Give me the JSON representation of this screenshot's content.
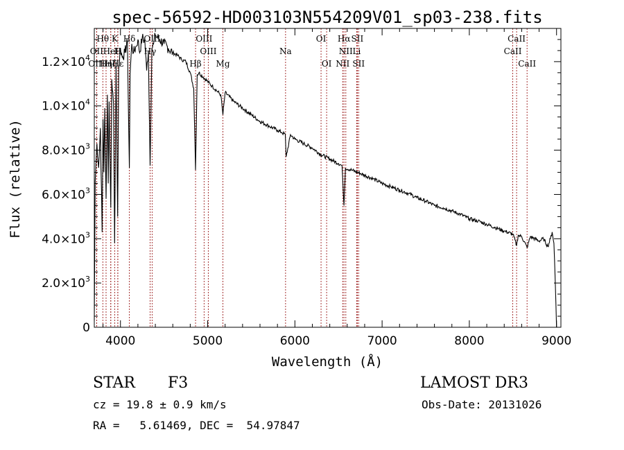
{
  "header": {
    "title": "spec-56592-HD003103N554209V01_sp03-238.fits"
  },
  "chart_data": {
    "type": "line",
    "title": "spec-56592-HD003103N554209V01_sp03-238.fits",
    "xlabel": "Wavelength (Å)",
    "ylabel": "Flux (relative)",
    "xlim": [
      3700,
      9050
    ],
    "ylim": [
      0,
      13500
    ],
    "x_ticks": [
      4000,
      5000,
      6000,
      7000,
      8000,
      9000
    ],
    "y_ticks": [
      {
        "value": 0,
        "mantissa": "0",
        "exp": ""
      },
      {
        "value": 2000,
        "mantissa": "2.0×10",
        "exp": "3"
      },
      {
        "value": 4000,
        "mantissa": "4.0×10",
        "exp": "3"
      },
      {
        "value": 6000,
        "mantissa": "6.0×10",
        "exp": "3"
      },
      {
        "value": 8000,
        "mantissa": "8.0×10",
        "exp": "3"
      },
      {
        "value": 10000,
        "mantissa": "1.0×10",
        "exp": "4"
      },
      {
        "value": 12000,
        "mantissa": "1.2×10",
        "exp": "4"
      }
    ],
    "series": [
      {
        "name": "flux",
        "x": [
          3700,
          3710,
          3730,
          3750,
          3770,
          3790,
          3800,
          3810,
          3820,
          3835,
          3850,
          3860,
          3870,
          3880,
          3889,
          3900,
          3920,
          3933,
          3950,
          3960,
          3968,
          3980,
          4000,
          4020,
          4050,
          4080,
          4102,
          4110,
          4130,
          4150,
          4180,
          4200,
          4220,
          4250,
          4280,
          4300,
          4320,
          4340,
          4360,
          4380,
          4400,
          4450,
          4500,
          4550,
          4600,
          4650,
          4700,
          4750,
          4800,
          4840,
          4861,
          4880,
          4900,
          4950,
          5000,
          5050,
          5100,
          5150,
          5175,
          5200,
          5300,
          5400,
          5500,
          5600,
          5700,
          5800,
          5850,
          5890,
          5900,
          5950,
          6000,
          6100,
          6200,
          6300,
          6400,
          6500,
          6540,
          6563,
          6580,
          6650,
          6750,
          6900,
          7000,
          7100,
          7200,
          7300,
          7400,
          7500,
          7600,
          7700,
          7800,
          7900,
          8000,
          8100,
          8200,
          8300,
          8400,
          8500,
          8542,
          8560,
          8600,
          8662,
          8700,
          8800,
          8850,
          8900,
          8930,
          8950,
          8970,
          8985,
          9000
        ],
        "values": [
          300,
          6600,
          8300,
          7200,
          9000,
          4300,
          9400,
          7000,
          9900,
          5800,
          10500,
          6500,
          10200,
          7600,
          5400,
          11200,
          10100,
          3800,
          12000,
          7800,
          5000,
          11700,
          12600,
          12200,
          12400,
          12900,
          7200,
          11400,
          12800,
          12400,
          12700,
          13000,
          12400,
          13100,
          12900,
          11600,
          12500,
          7300,
          12600,
          12800,
          13200,
          13000,
          12800,
          12600,
          12400,
          12300,
          12100,
          12000,
          11500,
          10800,
          7100,
          11400,
          11500,
          11300,
          11100,
          10900,
          10700,
          10500,
          9600,
          10600,
          10200,
          9900,
          9600,
          9300,
          9100,
          8900,
          8800,
          8700,
          7700,
          8700,
          8500,
          8300,
          8100,
          7800,
          7600,
          7400,
          7300,
          5500,
          7200,
          7100,
          6950,
          6700,
          6500,
          6350,
          6200,
          6050,
          5850,
          5700,
          5500,
          5400,
          5250,
          5100,
          4900,
          4800,
          4650,
          4500,
          4350,
          4200,
          3700,
          4150,
          4100,
          3600,
          4100,
          3900,
          4000,
          3650,
          4000,
          4300,
          3800,
          2100,
          0
        ]
      }
    ],
    "reference_lines": [
      {
        "label": "Hθ",
        "wl": 3798,
        "row": 0
      },
      {
        "label": "OII",
        "wl": 3727,
        "row": 1
      },
      {
        "label": "OIII",
        "wl": 3727,
        "row": 2
      },
      {
        "label": "K",
        "wl": 3934,
        "row": 0
      },
      {
        "label": "HeI",
        "wl": 3889,
        "row": 1
      },
      {
        "label": "Hη",
        "wl": 3835,
        "row": 2
      },
      {
        "label": "H",
        "wl": 3969,
        "row": 1
      },
      {
        "label": "Hζ",
        "wl": 3889,
        "row": 2
      },
      {
        "label": "Hε",
        "wl": 3970,
        "row": 2
      },
      {
        "label": "Hδ",
        "wl": 4102,
        "row": 0
      },
      {
        "label": "OIII",
        "wl": 4363,
        "row": 0
      },
      {
        "label": "Hγ",
        "wl": 4340,
        "row": 1
      },
      {
        "label": "OIII",
        "wl": 4959,
        "row": 0
      },
      {
        "label": "OIII",
        "wl": 5007,
        "row": 1
      },
      {
        "label": "Hβ",
        "wl": 4861,
        "row": 2
      },
      {
        "label": "Mg",
        "wl": 5175,
        "row": 2
      },
      {
        "label": "Na",
        "wl": 5893,
        "row": 1
      },
      {
        "label": "OI",
        "wl": 6300,
        "row": 0
      },
      {
        "label": "OI",
        "wl": 6364,
        "row": 2
      },
      {
        "label": "Hα",
        "wl": 6563,
        "row": 0
      },
      {
        "label": "SII",
        "wl": 6716,
        "row": 0
      },
      {
        "label": "NII",
        "wl": 6584,
        "row": 1
      },
      {
        "label": "Li",
        "wl": 6708,
        "row": 1
      },
      {
        "label": "NII",
        "wl": 6548,
        "row": 2
      },
      {
        "label": "SII",
        "wl": 6731,
        "row": 2
      },
      {
        "label": "CaII",
        "wl": 8542,
        "row": 0
      },
      {
        "label": "CaII",
        "wl": 8498,
        "row": 1
      },
      {
        "label": "CaII",
        "wl": 8662,
        "row": 2
      }
    ],
    "line_color": "#000000",
    "reference_line_color": "#9b1b1b"
  },
  "info": {
    "class_label": "STAR",
    "subclass": "F3",
    "survey": "LAMOST DR3",
    "cz": "cz = 19.8 ± 0.9 km/s",
    "obs_date": "Obs-Date: 20131026",
    "coords": "RA =   5.61469, DEC =  54.97847"
  }
}
